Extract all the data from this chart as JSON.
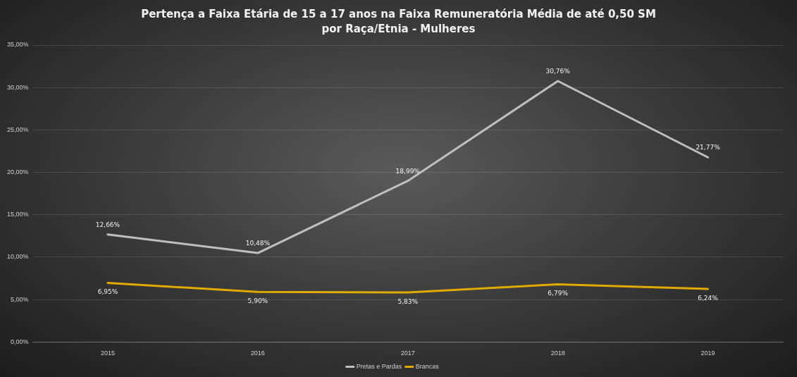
{
  "chart_data": {
    "type": "line",
    "title": "Pertença a Faixa Etária de 15 a 17 anos na Faixa Remuneratória Média de até 0,50 SM por Raça/Etnia  - Mulheres",
    "categories": [
      "2015",
      "2016",
      "2017",
      "2018",
      "2019"
    ],
    "series": [
      {
        "name": "Pretas e Pardas",
        "color": "#bfbfbf",
        "values": [
          12.66,
          10.48,
          18.99,
          30.76,
          21.77
        ],
        "value_labels": [
          "12,66%",
          "10,48%",
          "18,99%",
          "30,76%",
          "21,77%"
        ]
      },
      {
        "name": "Brancas",
        "color": "#e0aa00",
        "values": [
          6.95,
          5.9,
          5.83,
          6.79,
          6.24
        ],
        "value_labels": [
          "6,95%",
          "5,90%",
          "5,83%",
          "6,79%",
          "6,24%"
        ]
      }
    ],
    "ylim": [
      0,
      35
    ],
    "yticks": [
      {
        "value": 0,
        "label": "0,00%"
      },
      {
        "value": 5,
        "label": "5,00%"
      },
      {
        "value": 10,
        "label": "10,00%"
      },
      {
        "value": 15,
        "label": "15,00%"
      },
      {
        "value": 20,
        "label": "20,00%"
      },
      {
        "value": 25,
        "label": "25,00%"
      },
      {
        "value": 30,
        "label": "30,00%"
      },
      {
        "value": 35,
        "label": "35,00%"
      }
    ],
    "grid": "y",
    "legend": "bottom",
    "marker": "none",
    "line_style": "solid"
  }
}
